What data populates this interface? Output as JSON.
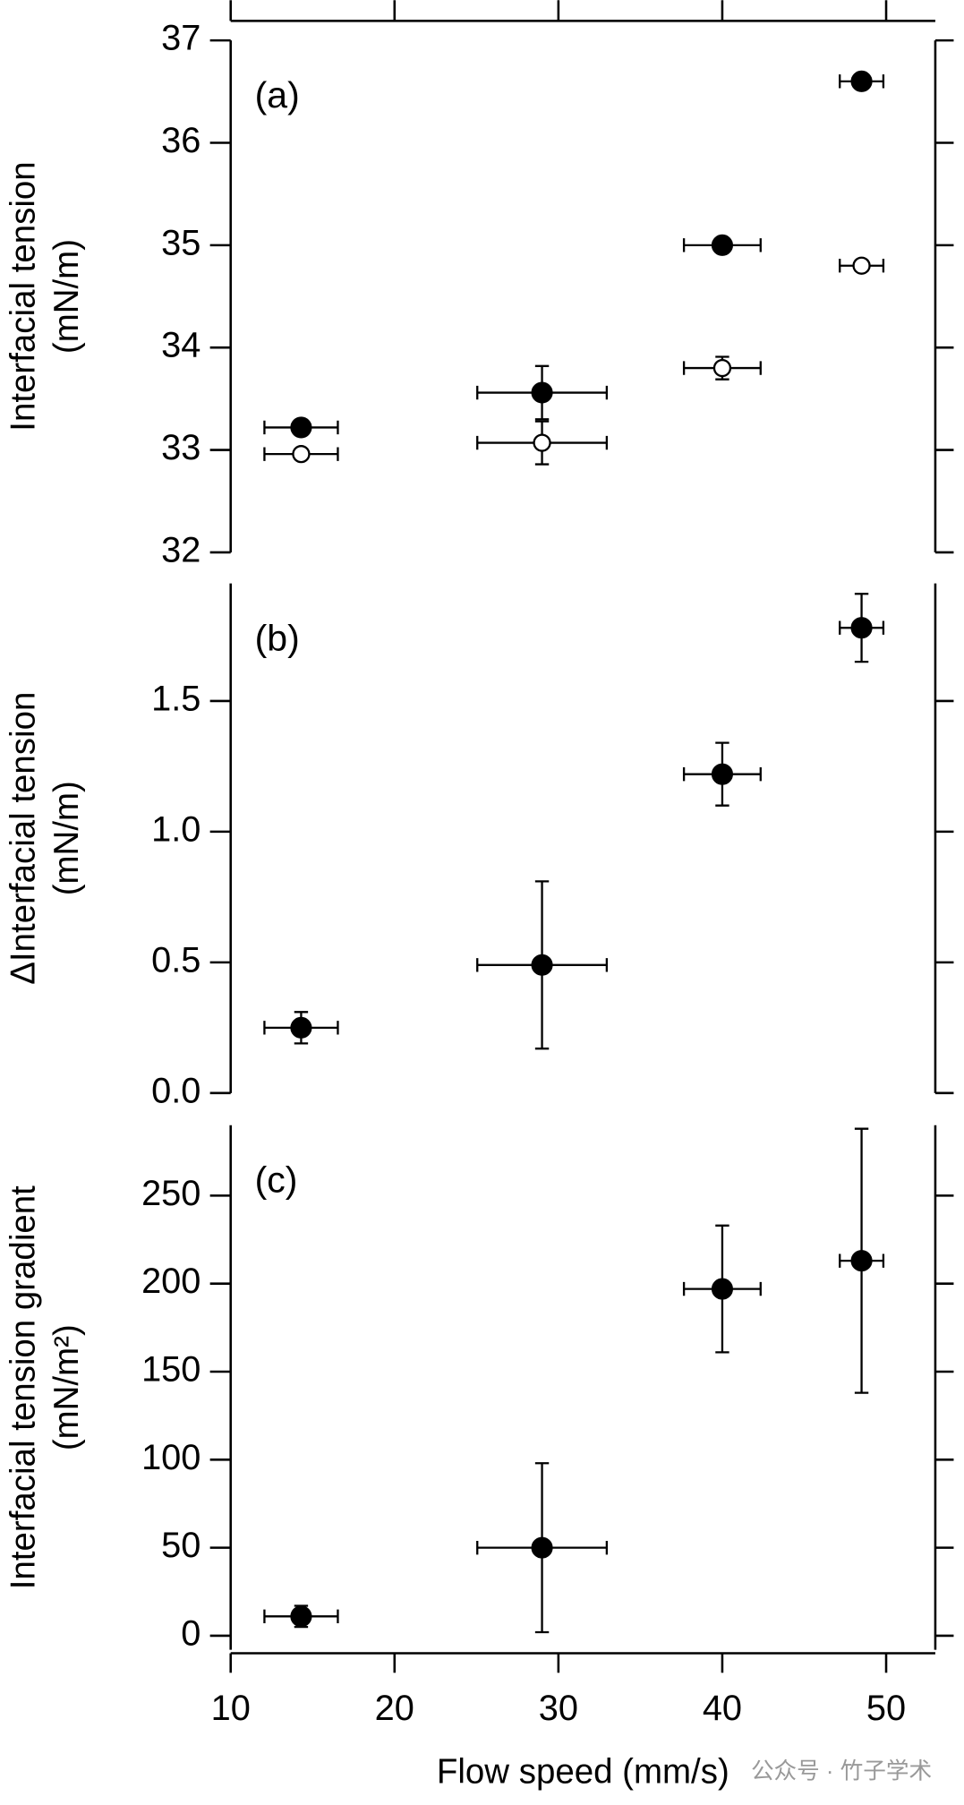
{
  "chart_data": [
    {
      "type": "scatter",
      "panel_label": "(a)",
      "ylabel": [
        "Interfacial tension",
        "(mN/m)"
      ],
      "xlim": [
        10,
        53
      ],
      "ylim": [
        32,
        37
      ],
      "yticks": [
        32,
        33,
        34,
        35,
        36,
        37
      ],
      "series": [
        {
          "marker": "filled",
          "color": "#000000",
          "x": [
            14.3,
            29,
            40,
            48.5
          ],
          "values": [
            33.22,
            33.56,
            35.0,
            36.6
          ],
          "xerr": [
            2.24,
            3.95,
            2.34,
            1.33
          ],
          "yerr": [
            0.05,
            0.26,
            0.04,
            0.05
          ]
        },
        {
          "marker": "open",
          "color": "#000000",
          "x": [
            14.3,
            29,
            40,
            48.5
          ],
          "values": [
            32.96,
            33.07,
            33.8,
            34.8
          ],
          "xerr": [
            2.24,
            3.95,
            2.34,
            1.33
          ],
          "yerr": [
            0.05,
            0.21,
            0.11,
            0.05
          ]
        }
      ]
    },
    {
      "type": "scatter",
      "panel_label": "(b)",
      "ylabel": [
        "ΔInterfacial tension",
        "(mN/m)"
      ],
      "xlim": [
        10,
        53
      ],
      "ylim": [
        0,
        1.95
      ],
      "yticks": [
        {
          "value": 0,
          "label": "0.0"
        },
        0.5,
        {
          "value": 1,
          "label": "1.0"
        },
        1.5
      ],
      "series": [
        {
          "marker": "filled",
          "color": "#000000",
          "x": [
            14.3,
            29,
            40,
            48.5
          ],
          "values": [
            0.25,
            0.49,
            1.22,
            1.78
          ],
          "xerr": [
            2.24,
            3.95,
            2.34,
            1.33
          ],
          "yerr": [
            0.06,
            0.32,
            0.12,
            0.13
          ]
        }
      ]
    },
    {
      "type": "scatter",
      "panel_label": "(c)",
      "ylabel": [
        "Interfacial tension gradient",
        "(mN/m²)"
      ],
      "xlabel": "Flow speed (mm/s)",
      "watermark": "公众号 · 竹子学术",
      "xlim": [
        10,
        53
      ],
      "xticks": [
        10,
        20,
        30,
        40,
        50
      ],
      "ylim": [
        -8,
        290
      ],
      "yticks": [
        0,
        50,
        100,
        150,
        200,
        250
      ],
      "series": [
        {
          "marker": "filled",
          "color": "#000000",
          "x": [
            14.3,
            29,
            40,
            48.5
          ],
          "values": [
            11,
            50,
            197,
            213
          ],
          "xerr": [
            2.24,
            3.95,
            2.34,
            1.33
          ],
          "yerr": [
            6,
            48,
            36,
            75
          ]
        }
      ]
    }
  ]
}
